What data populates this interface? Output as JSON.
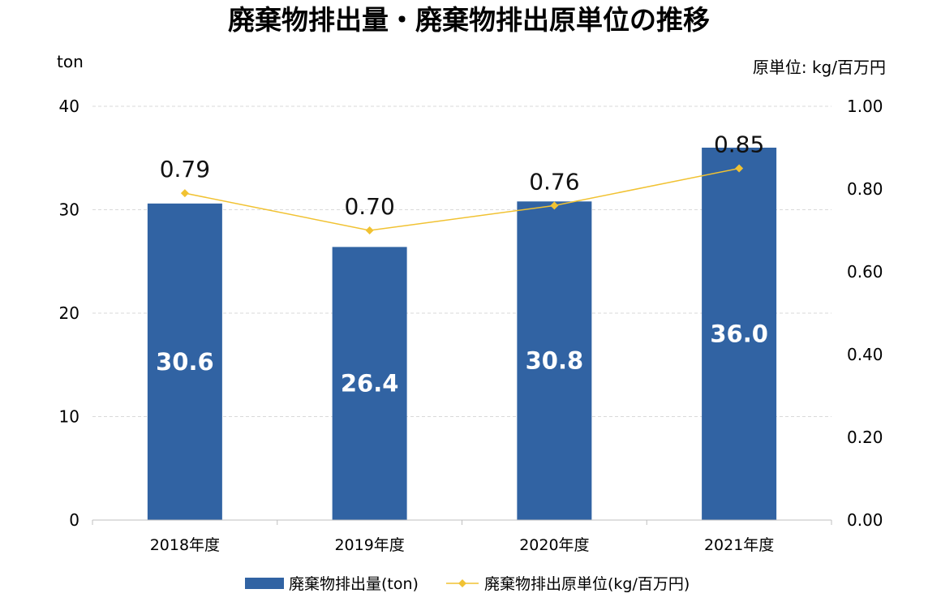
{
  "chart_data": {
    "type": "bar",
    "title": "廃棄物排出量・廃棄物排出原単位の推移",
    "left_axis_unit": "ton",
    "right_axis_unit": "原単位: kg/百万円",
    "categories": [
      "2018年度",
      "2019年度",
      "2020年度",
      "2021年度"
    ],
    "left_ylim": [
      0,
      40
    ],
    "left_ticks": [
      "0",
      "10",
      "20",
      "30",
      "40"
    ],
    "right_ylim": [
      0,
      1.0
    ],
    "right_ticks": [
      "0.00",
      "0.20",
      "0.40",
      "0.60",
      "0.80",
      "1.00"
    ],
    "grid": true,
    "legend_position": "bottom",
    "series": [
      {
        "name": "廃棄物排出量(ton)",
        "kind": "bar",
        "axis": "left",
        "color": "#3163a3",
        "values": [
          30.6,
          26.4,
          30.8,
          36.0
        ],
        "labels": [
          "30.6",
          "26.4",
          "30.8",
          "36.0"
        ]
      },
      {
        "name": "廃棄物排出原単位(kg/百万円)",
        "kind": "line",
        "axis": "right",
        "color": "#f1c232",
        "values": [
          0.79,
          0.7,
          0.76,
          0.85
        ],
        "labels": [
          "0.79",
          "0.70",
          "0.76",
          "0.85"
        ]
      }
    ]
  }
}
